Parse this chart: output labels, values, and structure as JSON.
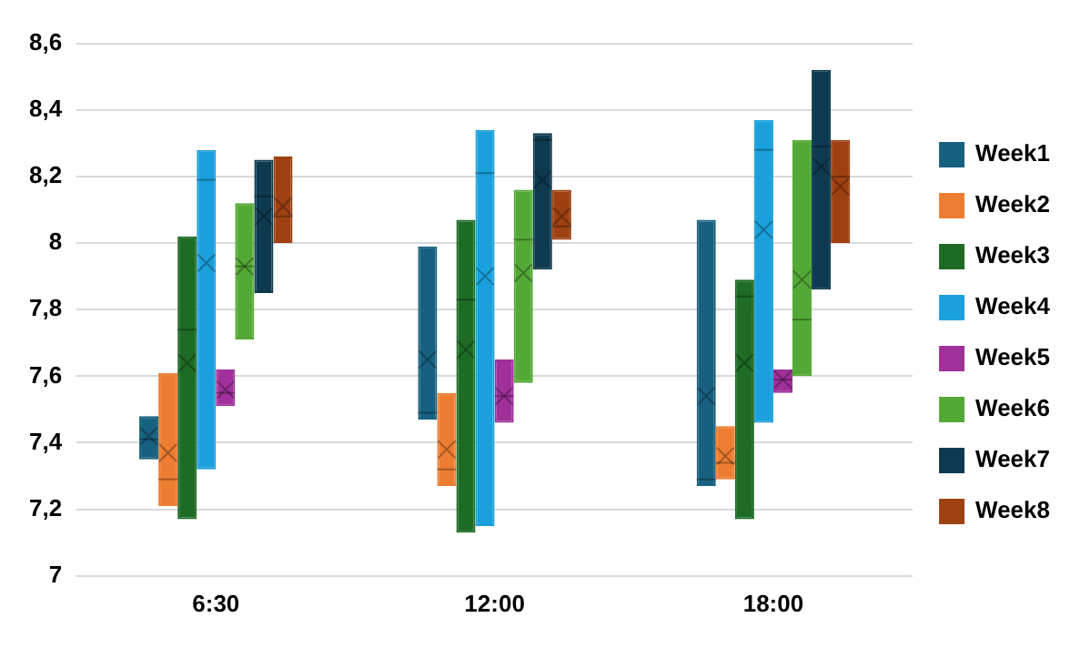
{
  "chart_data": {
    "type": "box",
    "categories": [
      "6:30",
      "12:00",
      "18:00"
    ],
    "ylim": [
      7,
      8.6
    ],
    "yticks": [
      7,
      {
        "value": 7.2,
        "label": "7,2"
      },
      {
        "value": 7.4,
        "label": "7,4"
      },
      {
        "value": 7.6,
        "label": "7,6"
      },
      {
        "value": 7.8,
        "label": "7,8"
      },
      8,
      {
        "value": 8.2,
        "label": "8,2"
      },
      {
        "value": 8.4,
        "label": "8,4"
      },
      {
        "value": 8.6,
        "label": "8,6"
      }
    ],
    "grid": "y",
    "legend": "right",
    "marker": "cross",
    "series": [
      {
        "name": "Week1",
        "color": "#17607f",
        "boxes": [
          {
            "low": 7.35,
            "q1": 7.35,
            "median": 7.41,
            "q3": 7.48,
            "high": 7.48,
            "mean": 7.42
          },
          {
            "low": 7.47,
            "q1": 7.47,
            "median": 7.49,
            "q3": 7.99,
            "high": 7.99,
            "mean": 7.65
          },
          {
            "low": 7.27,
            "q1": 7.27,
            "median": 7.29,
            "q3": 8.07,
            "high": 8.07,
            "mean": 7.54
          }
        ]
      },
      {
        "name": "Week2",
        "color": "#ed7d31",
        "boxes": [
          {
            "low": 7.21,
            "q1": 7.21,
            "median": 7.29,
            "q3": 7.61,
            "high": 7.61,
            "mean": 7.37
          },
          {
            "low": 7.27,
            "q1": 7.27,
            "median": 7.32,
            "q3": 7.55,
            "high": 7.55,
            "mean": 7.38
          },
          {
            "low": 7.29,
            "q1": 7.29,
            "median": 7.34,
            "q3": 7.45,
            "high": 7.45,
            "mean": 7.36
          }
        ]
      },
      {
        "name": "Week3",
        "color": "#1e6b26",
        "boxes": [
          {
            "low": 7.17,
            "q1": 7.17,
            "median": 7.74,
            "q3": 8.02,
            "high": 8.02,
            "mean": 7.64
          },
          {
            "low": 7.13,
            "q1": 7.13,
            "median": 7.83,
            "q3": 8.07,
            "high": 8.07,
            "mean": 7.68
          },
          {
            "low": 7.17,
            "q1": 7.17,
            "median": 7.84,
            "q3": 7.89,
            "high": 7.89,
            "mean": 7.64
          }
        ]
      },
      {
        "name": "Week4",
        "color": "#1aa0dc",
        "boxes": [
          {
            "low": 7.32,
            "q1": 7.32,
            "median": 8.19,
            "q3": 8.28,
            "high": 8.28,
            "mean": 7.94
          },
          {
            "low": 7.15,
            "q1": 7.15,
            "median": 8.21,
            "q3": 8.34,
            "high": 8.34,
            "mean": 7.9
          },
          {
            "low": 7.46,
            "q1": 7.46,
            "median": 8.28,
            "q3": 8.37,
            "high": 8.37,
            "mean": 8.04
          }
        ]
      },
      {
        "name": "Week5",
        "color": "#a0309a",
        "boxes": [
          {
            "low": 7.51,
            "q1": 7.51,
            "median": 7.55,
            "q3": 7.62,
            "high": 7.62,
            "mean": 7.56
          },
          {
            "low": 7.46,
            "q1": 7.46,
            "median": 7.54,
            "q3": 7.65,
            "high": 7.65,
            "mean": 7.54
          },
          {
            "low": 7.55,
            "q1": 7.55,
            "median": 7.59,
            "q3": 7.62,
            "high": 7.62,
            "mean": 7.59
          }
        ]
      },
      {
        "name": "Week6",
        "color": "#53a935",
        "boxes": [
          {
            "low": 7.71,
            "q1": 7.71,
            "median": 7.93,
            "q3": 8.12,
            "high": 8.12,
            "mean": 7.93
          },
          {
            "low": 7.58,
            "q1": 7.58,
            "median": 8.01,
            "q3": 8.16,
            "high": 8.16,
            "mean": 7.91
          },
          {
            "low": 7.6,
            "q1": 7.6,
            "median": 7.77,
            "q3": 8.31,
            "high": 8.31,
            "mean": 7.89
          }
        ]
      },
      {
        "name": "Week7",
        "color": "#0e3a50",
        "boxes": [
          {
            "low": 7.85,
            "q1": 7.85,
            "median": 8.14,
            "q3": 8.25,
            "high": 8.25,
            "mean": 8.08
          },
          {
            "low": 7.92,
            "q1": 7.92,
            "median": 8.31,
            "q3": 8.33,
            "high": 8.33,
            "mean": 8.19
          },
          {
            "low": 7.86,
            "q1": 7.86,
            "median": 8.29,
            "q3": 8.52,
            "high": 8.52,
            "mean": 8.23
          }
        ]
      },
      {
        "name": "Week8",
        "color": "#9e4011",
        "boxes": [
          {
            "low": 8.0,
            "q1": 8.0,
            "median": 8.08,
            "q3": 8.26,
            "high": 8.26,
            "mean": 8.11
          },
          {
            "low": 8.01,
            "q1": 8.01,
            "median": 8.05,
            "q3": 8.16,
            "high": 8.16,
            "mean": 8.08
          },
          {
            "low": 8.0,
            "q1": 8.0,
            "median": 8.2,
            "q3": 8.31,
            "high": 8.31,
            "mean": 8.17
          }
        ]
      }
    ]
  }
}
